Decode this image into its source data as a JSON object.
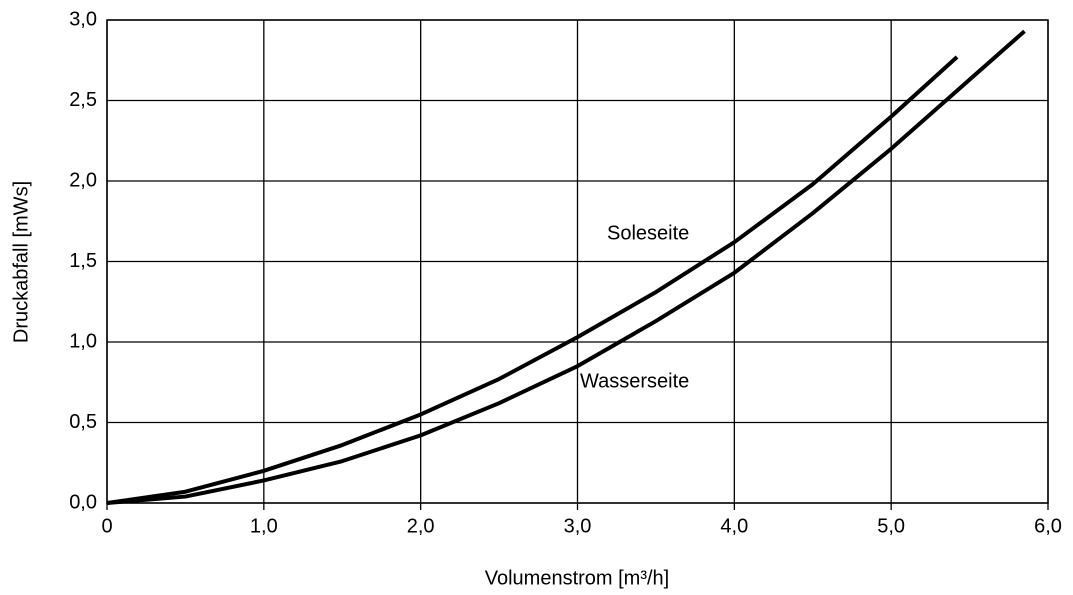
{
  "chart_data": {
    "type": "line",
    "x_label": "Volumenstrom [m³/h]",
    "y_label": "Druckabfall [mWs]",
    "xlim": [
      0,
      6
    ],
    "ylim": [
      0,
      3
    ],
    "xticks": [
      0,
      {
        "value": 1,
        "label": "1,0"
      },
      {
        "value": 2,
        "label": "2,0"
      },
      {
        "value": 3,
        "label": "3,0"
      },
      {
        "value": 4,
        "label": "4,0"
      },
      {
        "value": 5,
        "label": "5,0"
      },
      {
        "value": 6,
        "label": "6,0"
      }
    ],
    "yticks": [
      {
        "value": 0,
        "label": "0,0"
      },
      {
        "value": 0.5,
        "label": "0,5"
      },
      {
        "value": 1,
        "label": "1,0"
      },
      {
        "value": 1.5,
        "label": "1,5"
      },
      {
        "value": 2,
        "label": "2,0"
      },
      {
        "value": 2.5,
        "label": "2,5"
      },
      {
        "value": 3,
        "label": "3,0"
      }
    ],
    "grid": true,
    "series": [
      {
        "name": "Soleseite",
        "color": "#000000",
        "x": [
          0,
          0.5,
          1,
          1.5,
          2,
          2.5,
          3,
          3.5,
          4,
          4.5,
          5,
          5.42
        ],
        "values": [
          0,
          0.07,
          0.2,
          0.36,
          0.55,
          0.77,
          1.03,
          1.31,
          1.62,
          1.98,
          2.4,
          2.77
        ]
      },
      {
        "name": "Wasserseite",
        "color": "#000000",
        "x": [
          0,
          0.5,
          1,
          1.5,
          2,
          2.5,
          3,
          3.5,
          4,
          4.5,
          5,
          5.5,
          5.85
        ],
        "values": [
          0,
          0.04,
          0.14,
          0.26,
          0.42,
          0.62,
          0.85,
          1.13,
          1.43,
          1.8,
          2.2,
          2.63,
          2.93
        ]
      }
    ]
  }
}
